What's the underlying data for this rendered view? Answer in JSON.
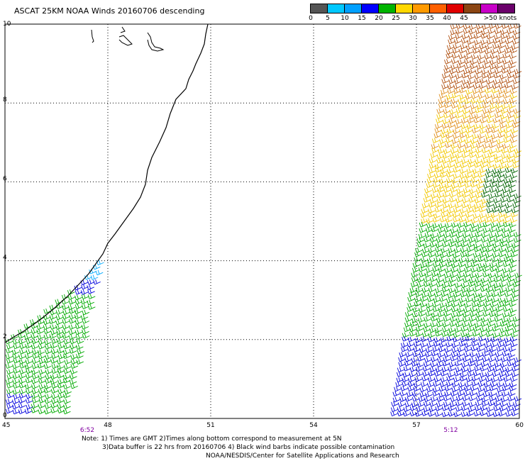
{
  "title": "ASCAT 25KM NOAA Winds 20160706 descending",
  "colorbar": {
    "colors": [
      "#555555",
      "#00c8ff",
      "#00a0ff",
      "#0000ff",
      "#00b400",
      "#ffd800",
      "#ff9a00",
      "#ff6000",
      "#e00000",
      "#8b4513",
      "#c800c8",
      "#6a006a"
    ],
    "labels": [
      "0",
      "5",
      "10",
      "15",
      "20",
      "25",
      "30",
      "35",
      "40",
      "45",
      ">50 knots"
    ]
  },
  "map": {
    "lon_range": [
      45,
      60
    ],
    "lat_range": [
      0,
      10
    ],
    "x_tick_labels": [
      "45",
      "48",
      "51",
      "54",
      "57",
      "60"
    ],
    "y_tick_labels": [
      "0",
      "2",
      "4",
      "6",
      "8",
      "10"
    ],
    "time_labels": [
      {
        "text": "6:52",
        "lon": 47.4
      },
      {
        "text": "5:12",
        "lon": 58.0
      }
    ],
    "time_label_color": "#8000a0",
    "coast_color": "#000000",
    "wind_barb_colors": {
      "blue": "#0000dd",
      "cyan": "#00aaff",
      "green": "#00aa00",
      "dark_green": "#006400",
      "yellow": "#f2c800",
      "orange": "#e09020",
      "brown": "#b05010"
    }
  },
  "notes": {
    "line1": "Note: 1) Times are GMT 2)Times along bottom correspond to measurement at 5N",
    "line2": "3)Data buffer is 22 hrs from 20160706 4) Black wind barbs indicate possible contamination",
    "line3": "NOAA/NESDIS/Center for Satellite Applications and Research"
  }
}
